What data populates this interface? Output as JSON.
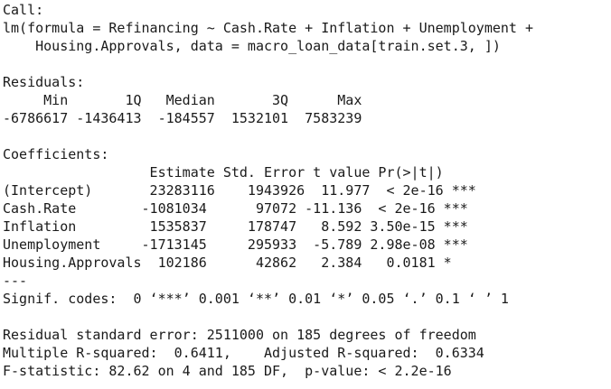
{
  "call": {
    "header": "Call:",
    "line1": "lm(formula = Refinancing ~ Cash.Rate + Inflation + Unemployment +",
    "line2": "    Housing.Approvals, data = macro_loan_data[train.set.3, ])"
  },
  "residuals": {
    "header": "Residuals:",
    "columns": "     Min       1Q   Median       3Q      Max ",
    "values": "-6786617 -1436413  -184557  1532101  7583239 "
  },
  "coefficients": {
    "header": "Coefficients:",
    "columns": "                  Estimate Std. Error t value Pr(>|t|)    ",
    "rows": [
      "(Intercept)       23283116    1943926  11.977  < 2e-16 ***",
      "Cash.Rate        -1081034      97072 -11.136  < 2e-16 ***",
      "Inflation         1535837     178747   8.592 3.50e-15 ***",
      "Unemployment     -1713145     295933  -5.789 2.98e-08 ***",
      "Housing.Approvals  102186      42862   2.384   0.0181 *  "
    ],
    "separator": "---",
    "signif_codes": "Signif. codes:  0 ‘***’ 0.001 ‘**’ 0.01 ‘*’ 0.05 ‘.’ 0.1 ‘ ’ 1"
  },
  "summary": {
    "rse": "Residual standard error: 2511000 on 185 degrees of freedom",
    "r_squared": "Multiple R-squared:  0.6411,    Adjusted R-squared:  0.6334 ",
    "f_statistic": "F-statistic: 82.62 on 4 and 185 DF,  p-value: < 2.2e-16"
  }
}
